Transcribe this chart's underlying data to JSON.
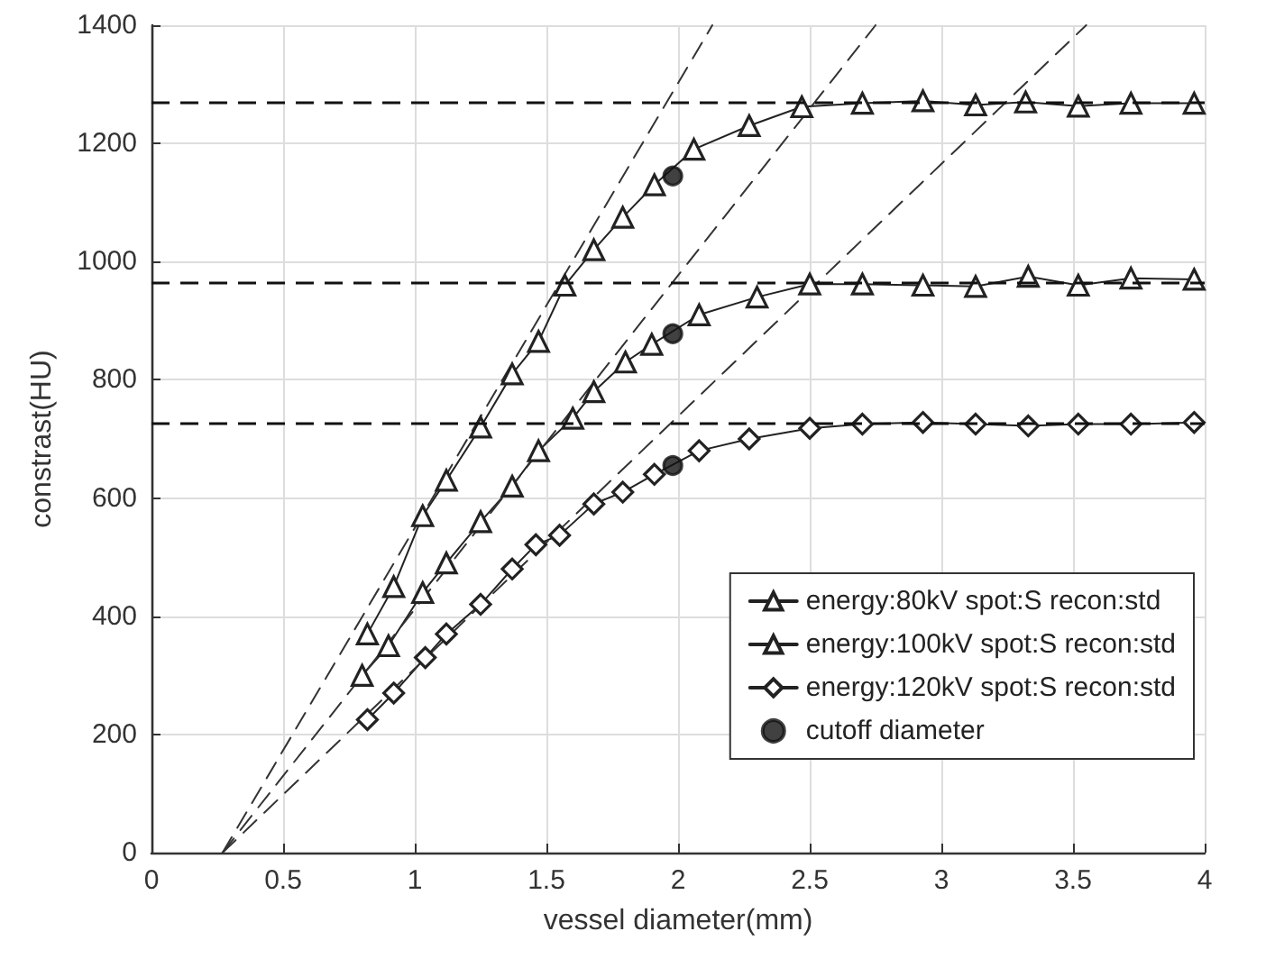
{
  "chart_data": {
    "type": "line",
    "xlabel": "vessel diameter(mm)",
    "ylabel": "constrast(HU)",
    "xlim": [
      0,
      4
    ],
    "xticks": [
      0,
      0.5,
      1,
      1.5,
      2,
      2.5,
      3,
      3.5,
      4
    ],
    "ylim": [
      0,
      1400
    ],
    "yticks": [
      0,
      200,
      400,
      600,
      800,
      1000,
      1200,
      1400
    ],
    "grid": true,
    "legend": "bottom right",
    "series": [
      {
        "name": "energy:80kV spot:S recon:std",
        "color": "#222222",
        "marker": "triangle",
        "x": [
          0.82,
          0.92,
          1.03,
          1.12,
          1.25,
          1.37,
          1.47,
          1.57,
          1.68,
          1.79,
          1.91,
          2.06,
          2.27,
          2.47,
          2.7,
          2.93,
          3.13,
          3.32,
          3.52,
          3.72,
          3.96
        ],
        "values": [
          370,
          450,
          570,
          630,
          720,
          810,
          865,
          960,
          1020,
          1075,
          1130,
          1190,
          1230,
          1262,
          1268,
          1272,
          1265,
          1270,
          1263,
          1268,
          1268
        ]
      },
      {
        "name": "energy:100kV spot:S recon:std",
        "color": "#222222",
        "marker": "triangle",
        "x": [
          0.8,
          0.9,
          1.03,
          1.12,
          1.25,
          1.37,
          1.47,
          1.6,
          1.68,
          1.8,
          1.9,
          2.08,
          2.3,
          2.5,
          2.7,
          2.93,
          3.13,
          3.33,
          3.52,
          3.72,
          3.96
        ],
        "values": [
          300,
          350,
          440,
          490,
          560,
          620,
          680,
          735,
          780,
          830,
          860,
          910,
          940,
          962,
          962,
          960,
          958,
          975,
          960,
          972,
          970
        ]
      },
      {
        "name": "energy:120kV spot:S recon:std",
        "color": "#222222",
        "marker": "diamond",
        "x": [
          0.82,
          0.92,
          1.04,
          1.12,
          1.25,
          1.37,
          1.46,
          1.55,
          1.68,
          1.79,
          1.91,
          2.08,
          2.27,
          2.5,
          2.7,
          2.93,
          3.13,
          3.33,
          3.52,
          3.72,
          3.96
        ],
        "values": [
          225,
          270,
          330,
          370,
          420,
          480,
          521,
          537,
          590,
          610,
          640,
          680,
          700,
          718,
          725,
          728,
          725,
          722,
          725,
          725,
          728
        ]
      },
      {
        "name": "cutoff diameter",
        "type": "scatter",
        "color": "#111111",
        "marker": "circle",
        "x": [
          1.98,
          1.98,
          1.98
        ],
        "values": [
          1145,
          878,
          655
        ]
      },
      {
        "type": "line",
        "color": "#333333",
        "marker": "none",
        "line_style": "dashed",
        "x": [
          0.27,
          2.13
        ],
        "values": [
          0,
          1400
        ]
      },
      {
        "type": "line",
        "color": "#333333",
        "marker": "none",
        "line_style": "dashed",
        "x": [
          0.27,
          2.75
        ],
        "values": [
          0,
          1400
        ]
      },
      {
        "type": "line",
        "color": "#333333",
        "marker": "none",
        "line_style": "dashed",
        "x": [
          0.27,
          3.55
        ],
        "values": [
          0,
          1400
        ]
      }
    ],
    "ref_lines": [
      {
        "axis": "y",
        "value": 1270,
        "color": "#111111",
        "line_style": "dashed"
      },
      {
        "axis": "y",
        "value": 965,
        "color": "#111111",
        "line_style": "dashed"
      },
      {
        "axis": "y",
        "value": 728,
        "color": "#111111",
        "line_style": "dashed"
      }
    ]
  }
}
